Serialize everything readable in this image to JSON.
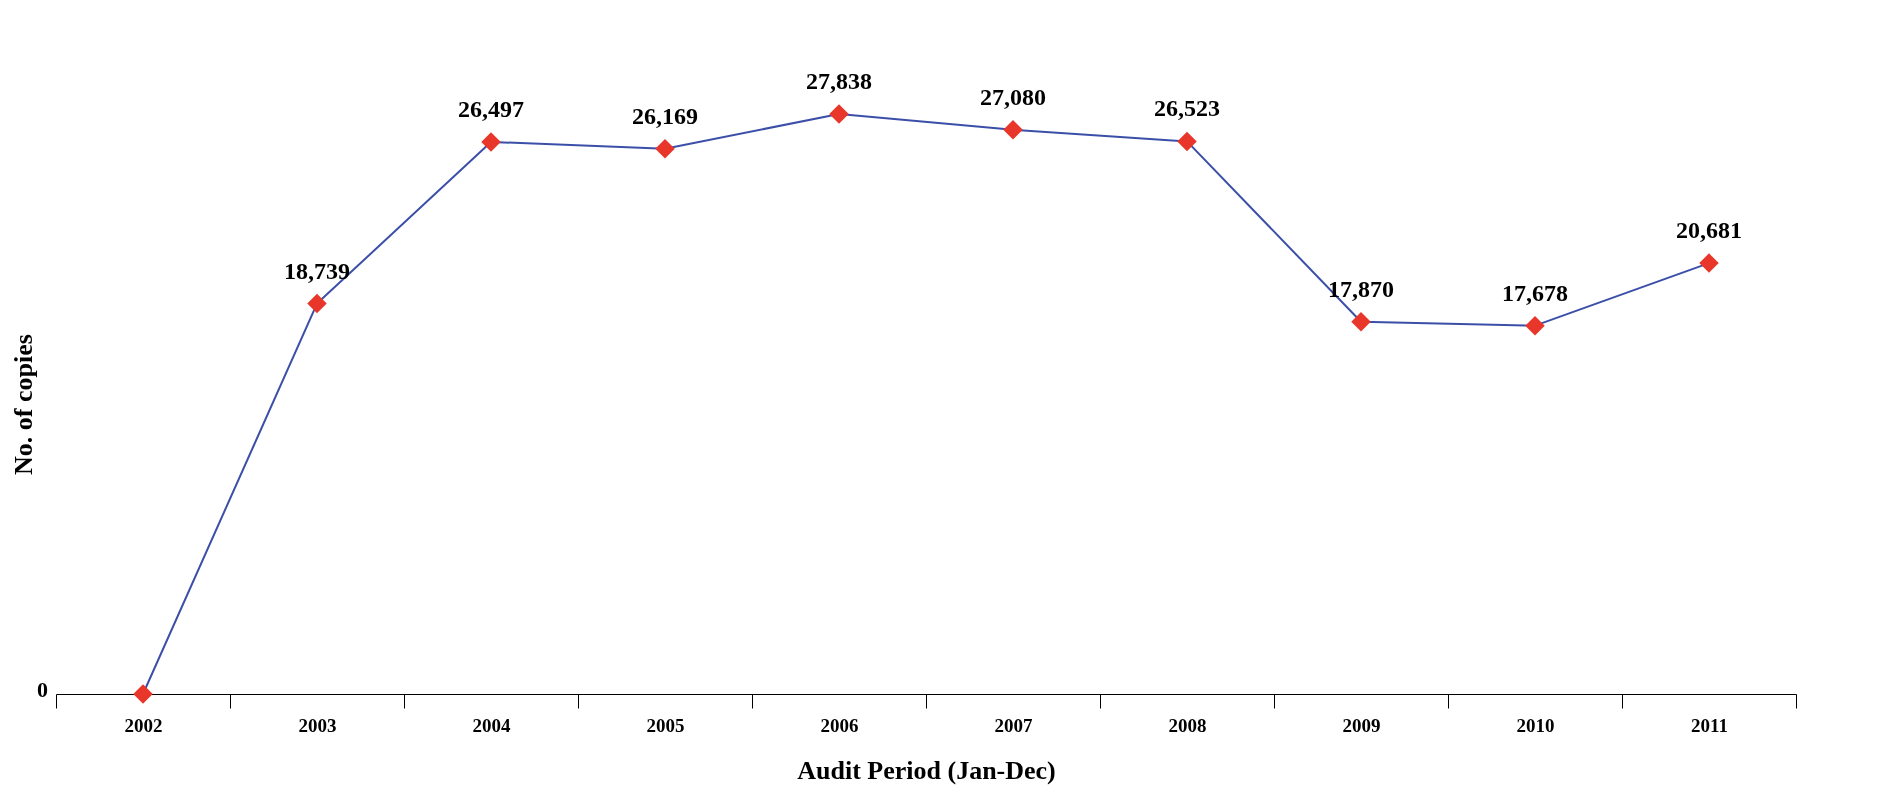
{
  "chart_data": {
    "type": "line",
    "xlabel": "Audit Period (Jan-Dec)",
    "ylabel": "No. of copies",
    "categories": [
      "2002",
      "2003",
      "2004",
      "2005",
      "2006",
      "2007",
      "2008",
      "2009",
      "2010",
      "2011"
    ],
    "series": [
      {
        "color": "#3b4fa8",
        "colors": [
          "#e8372a",
          "#e8372a",
          "#e8372a",
          "#e8372a",
          "#e8372a",
          "#e8372a",
          "#e8372a",
          "#e8372a",
          "#e8372a",
          "#e8372a"
        ],
        "values": [
          0,
          18739,
          26497,
          26169,
          27838,
          27080,
          26523,
          17870,
          17678,
          20681
        ],
        "value_labels": [
          null,
          "18,739",
          "26,497",
          "26,169",
          "27,838",
          "27,080",
          "26,523",
          "17,870",
          "17,678",
          "20,681"
        ]
      }
    ],
    "annotations": [
      "0"
    ],
    "marker": "diamond",
    "line_style": "solid"
  }
}
